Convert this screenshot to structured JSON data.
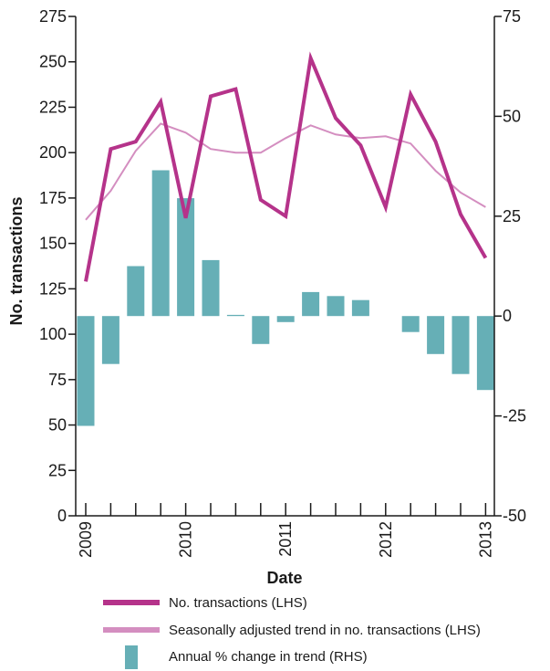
{
  "chart_data": {
    "type": "bar",
    "xlabel": "Date",
    "ylabel_left": "No. transactions",
    "ylabel_right": "",
    "x_tick_labels": [
      "2009",
      "2010",
      "2011",
      "2012",
      "2013"
    ],
    "x_tick_positions": [
      0,
      4,
      8,
      12,
      16
    ],
    "left_axis": {
      "min": 0,
      "max": 275,
      "ticks": [
        0,
        25,
        50,
        75,
        100,
        125,
        150,
        175,
        200,
        225,
        250,
        275
      ]
    },
    "right_axis": {
      "min": -50,
      "max": 75,
      "ticks": [
        -50,
        -25,
        0,
        25,
        50,
        75
      ]
    },
    "series": [
      {
        "name": "No. transactions (LHS)",
        "axis": "left",
        "kind": "line",
        "color": "#b5338a",
        "x": [
          0,
          1,
          2,
          3,
          4,
          5,
          6,
          7,
          8,
          9,
          10,
          11,
          12,
          13,
          14,
          15,
          16
        ],
        "values": [
          129,
          202,
          206,
          228,
          164,
          231,
          235,
          174,
          165,
          252,
          219,
          204,
          170,
          232,
          206,
          166,
          142
        ]
      },
      {
        "name": "Seasonally adjusted trend in no. transactions (LHS)",
        "axis": "left",
        "kind": "line",
        "color": "#d48ec0",
        "x": [
          0,
          1,
          2,
          3,
          4,
          5,
          6,
          7,
          8,
          9,
          10,
          11,
          12,
          13,
          14,
          15,
          16
        ],
        "values": [
          163,
          179,
          201,
          216,
          211,
          202,
          200,
          200,
          208,
          215,
          210,
          208,
          209,
          205,
          190,
          178,
          170
        ]
      },
      {
        "name": "Annual % change in trend (RHS)",
        "axis": "right",
        "kind": "bar",
        "color": "#66afb6",
        "x": [
          0,
          1,
          2,
          3,
          4,
          5,
          6,
          7,
          8,
          9,
          10,
          11,
          12,
          13,
          14,
          15,
          16
        ],
        "values": [
          -27.5,
          -12,
          12.5,
          36.5,
          29.5,
          14,
          0.3,
          -7,
          -1.5,
          6,
          5,
          4,
          0,
          -4,
          -9.5,
          -14.5,
          -18.5
        ]
      }
    ],
    "legend": {
      "placement": "bottom",
      "entries": [
        "No. transactions (LHS)",
        "Seasonally adjusted trend in no. transactions (LHS)",
        "Annual % change in trend (RHS)"
      ]
    },
    "grid": false
  },
  "colors": {
    "line_main": "#b5338a",
    "line_trend": "#d48ec0",
    "bars": "#66afb6",
    "axis": "#1a1a1a"
  }
}
